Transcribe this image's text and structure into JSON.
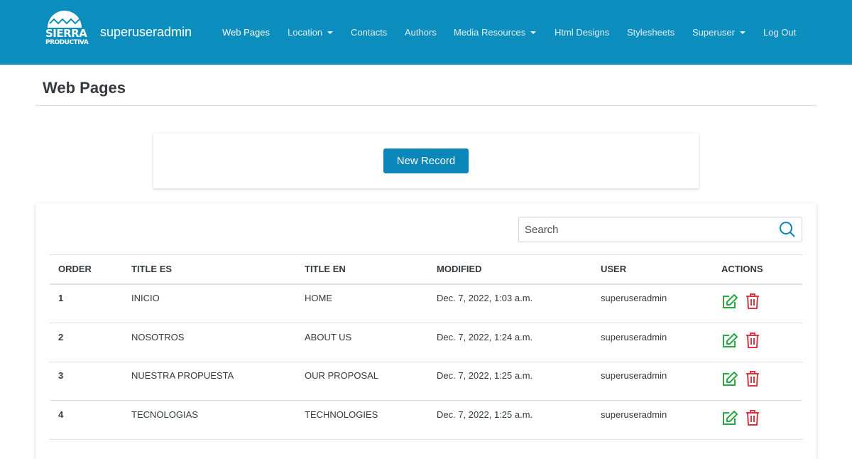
{
  "navbar": {
    "logo": [
      "SIERRA",
      "PRODUCTIVA"
    ],
    "brand": "superuseradmin",
    "links": [
      {
        "label": "Web Pages",
        "active": true,
        "dropdown": false
      },
      {
        "label": "Location",
        "active": false,
        "dropdown": true
      },
      {
        "label": "Contacts",
        "active": false,
        "dropdown": false
      },
      {
        "label": "Authors",
        "active": false,
        "dropdown": false
      },
      {
        "label": "Media Resources",
        "active": false,
        "dropdown": true
      },
      {
        "label": "Html Designs",
        "active": false,
        "dropdown": false
      },
      {
        "label": "Stylesheets",
        "active": false,
        "dropdown": false
      },
      {
        "label": "Superuser",
        "active": false,
        "dropdown": true
      },
      {
        "label": "Log Out",
        "active": false,
        "dropdown": false
      }
    ]
  },
  "page": {
    "title": "Web Pages",
    "button": "New Record",
    "search_placeholder": "Search"
  },
  "table": {
    "headers": [
      "ORDER",
      "TITLE ES",
      "TITLE EN",
      "MODIFIED",
      "USER",
      "ACTIONS"
    ],
    "rows": [
      [
        "1",
        "INICIO",
        "HOME",
        "Dec. 7, 2022, 1:03 a.m.",
        "superuseradmin"
      ],
      [
        "2",
        "NOSOTROS",
        "ABOUT US",
        "Dec. 7, 2022, 1:24 a.m.",
        "superuseradmin"
      ],
      [
        "3",
        "NUESTRA PROPUESTA",
        "OUR PROPOSAL",
        "Dec. 7, 2022, 1:25 a.m.",
        "superuseradmin"
      ],
      [
        "4",
        "TECNOLOGIAS",
        "TECHNOLOGIES",
        "Dec. 7, 2022, 1:25 a.m.",
        "superuseradmin"
      ]
    ]
  }
}
